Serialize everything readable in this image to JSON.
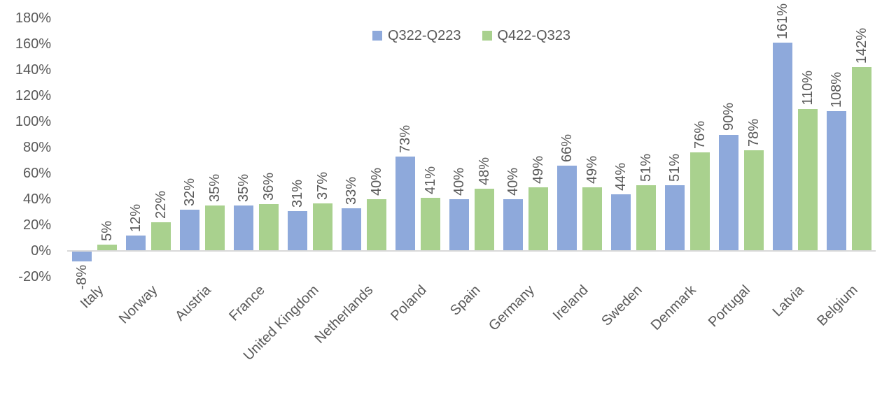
{
  "chart_data": {
    "type": "bar",
    "title": "",
    "categories": [
      "Italy",
      "Norway",
      "Austria",
      "France",
      "United Kingdom",
      "Netherlands",
      "Poland",
      "Spain",
      "Germany",
      "Ireland",
      "Sweden",
      "Denmark",
      "Portugal",
      "Latvia",
      "Belgium"
    ],
    "series": [
      {
        "name": "Q322-Q223",
        "color": "#8EA9DB",
        "values": [
          -8,
          12,
          32,
          35,
          31,
          33,
          73,
          40,
          40,
          66,
          44,
          51,
          90,
          161,
          108
        ],
        "data_labels": [
          "-8%",
          "12%",
          "32%",
          "35%",
          "31%",
          "33%",
          "73%",
          "40%",
          "40%",
          "66%",
          "44%",
          "51%",
          "90%",
          "161%",
          "108%"
        ]
      },
      {
        "name": "Q422-Q323",
        "color": "#A9D18E",
        "values": [
          5,
          22,
          35,
          36,
          37,
          40,
          41,
          48,
          49,
          49,
          51,
          76,
          78,
          110,
          142
        ],
        "data_labels": [
          "5%",
          "22%",
          "35%",
          "36%",
          "37%",
          "40%",
          "41%",
          "48%",
          "49%",
          "49%",
          "51%",
          "76%",
          "78%",
          "110%",
          "142%"
        ]
      }
    ],
    "y_axis": {
      "min": -20,
      "max": 180,
      "step": 20,
      "tick_labels": [
        "180%",
        "160%",
        "140%",
        "120%",
        "100%",
        "80%",
        "60%",
        "40%",
        "20%",
        "0%",
        "-20%"
      ]
    },
    "legend_position": "top-center",
    "grid": false
  },
  "colors": {
    "axis_line": "#D9D9D9",
    "text": "#595959",
    "background": "#FFFFFF"
  }
}
